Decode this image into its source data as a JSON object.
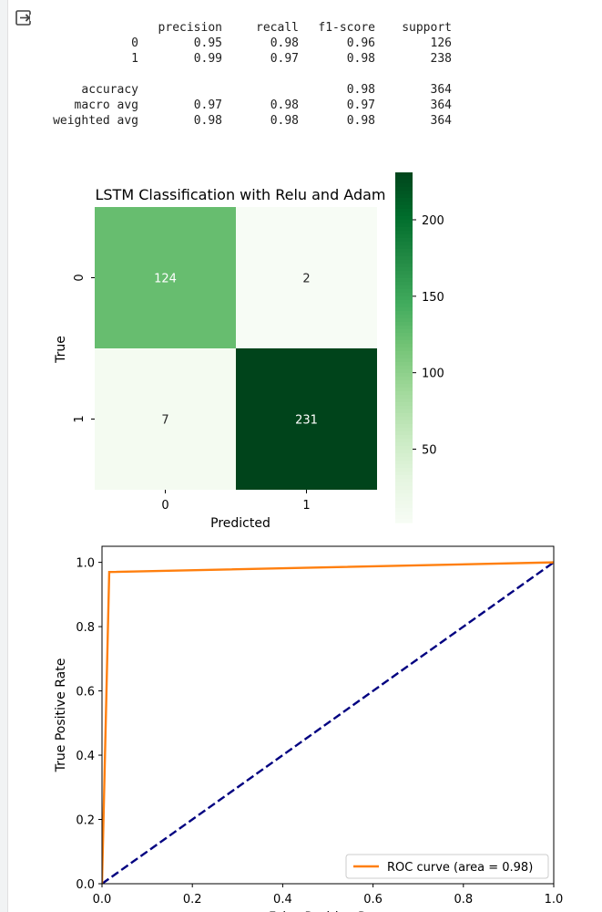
{
  "output_icon": "output-exit-icon",
  "report": {
    "header": [
      "",
      "precision",
      "recall",
      "f1-score",
      "support"
    ],
    "rows": [
      [
        "0",
        "0.95",
        "0.98",
        "0.96",
        "126"
      ],
      [
        "1",
        "0.99",
        "0.97",
        "0.98",
        "238"
      ],
      [
        "",
        "",
        "",
        "",
        ""
      ],
      [
        "accuracy",
        "",
        "",
        "0.98",
        "364"
      ],
      [
        "macro avg",
        "0.97",
        "0.98",
        "0.97",
        "364"
      ],
      [
        "weighted avg",
        "0.98",
        "0.98",
        "0.98",
        "364"
      ]
    ]
  },
  "chart_data": [
    {
      "type": "heatmap",
      "title": "LSTM Classification with Relu and Adam",
      "xlabel": "Predicted",
      "ylabel": "True",
      "x_categories": [
        "0",
        "1"
      ],
      "y_categories": [
        "0",
        "1"
      ],
      "values": [
        [
          124,
          2
        ],
        [
          7,
          231
        ]
      ],
      "colormap": "Greens",
      "colorbar": {
        "min": 2,
        "max": 231,
        "ticks": [
          50,
          100,
          150,
          200
        ]
      },
      "colors": {
        "low": "#f7fcf5",
        "high": "#00441b"
      }
    },
    {
      "type": "line",
      "title": "",
      "xlabel": "False Positive Rate",
      "ylabel": "True Positive Rate",
      "xlim": [
        0.0,
        1.0
      ],
      "ylim": [
        0.0,
        1.05
      ],
      "xticks": [
        "0.0",
        "0.2",
        "0.4",
        "0.6",
        "0.8",
        "1.0"
      ],
      "yticks": [
        "0.0",
        "0.2",
        "0.4",
        "0.6",
        "0.8",
        "1.0"
      ],
      "legend_position": "bottom-right",
      "series": [
        {
          "name": "ROC curve (area = 0.98)",
          "color": "#ff7f0e",
          "style": "solid",
          "points": [
            [
              0.0,
              0.0
            ],
            [
              0.016,
              0.97
            ],
            [
              1.0,
              1.0
            ]
          ]
        },
        {
          "name": "",
          "color": "#000080",
          "style": "dashed",
          "points": [
            [
              0.0,
              0.0
            ],
            [
              1.0,
              1.0
            ]
          ]
        }
      ]
    }
  ]
}
